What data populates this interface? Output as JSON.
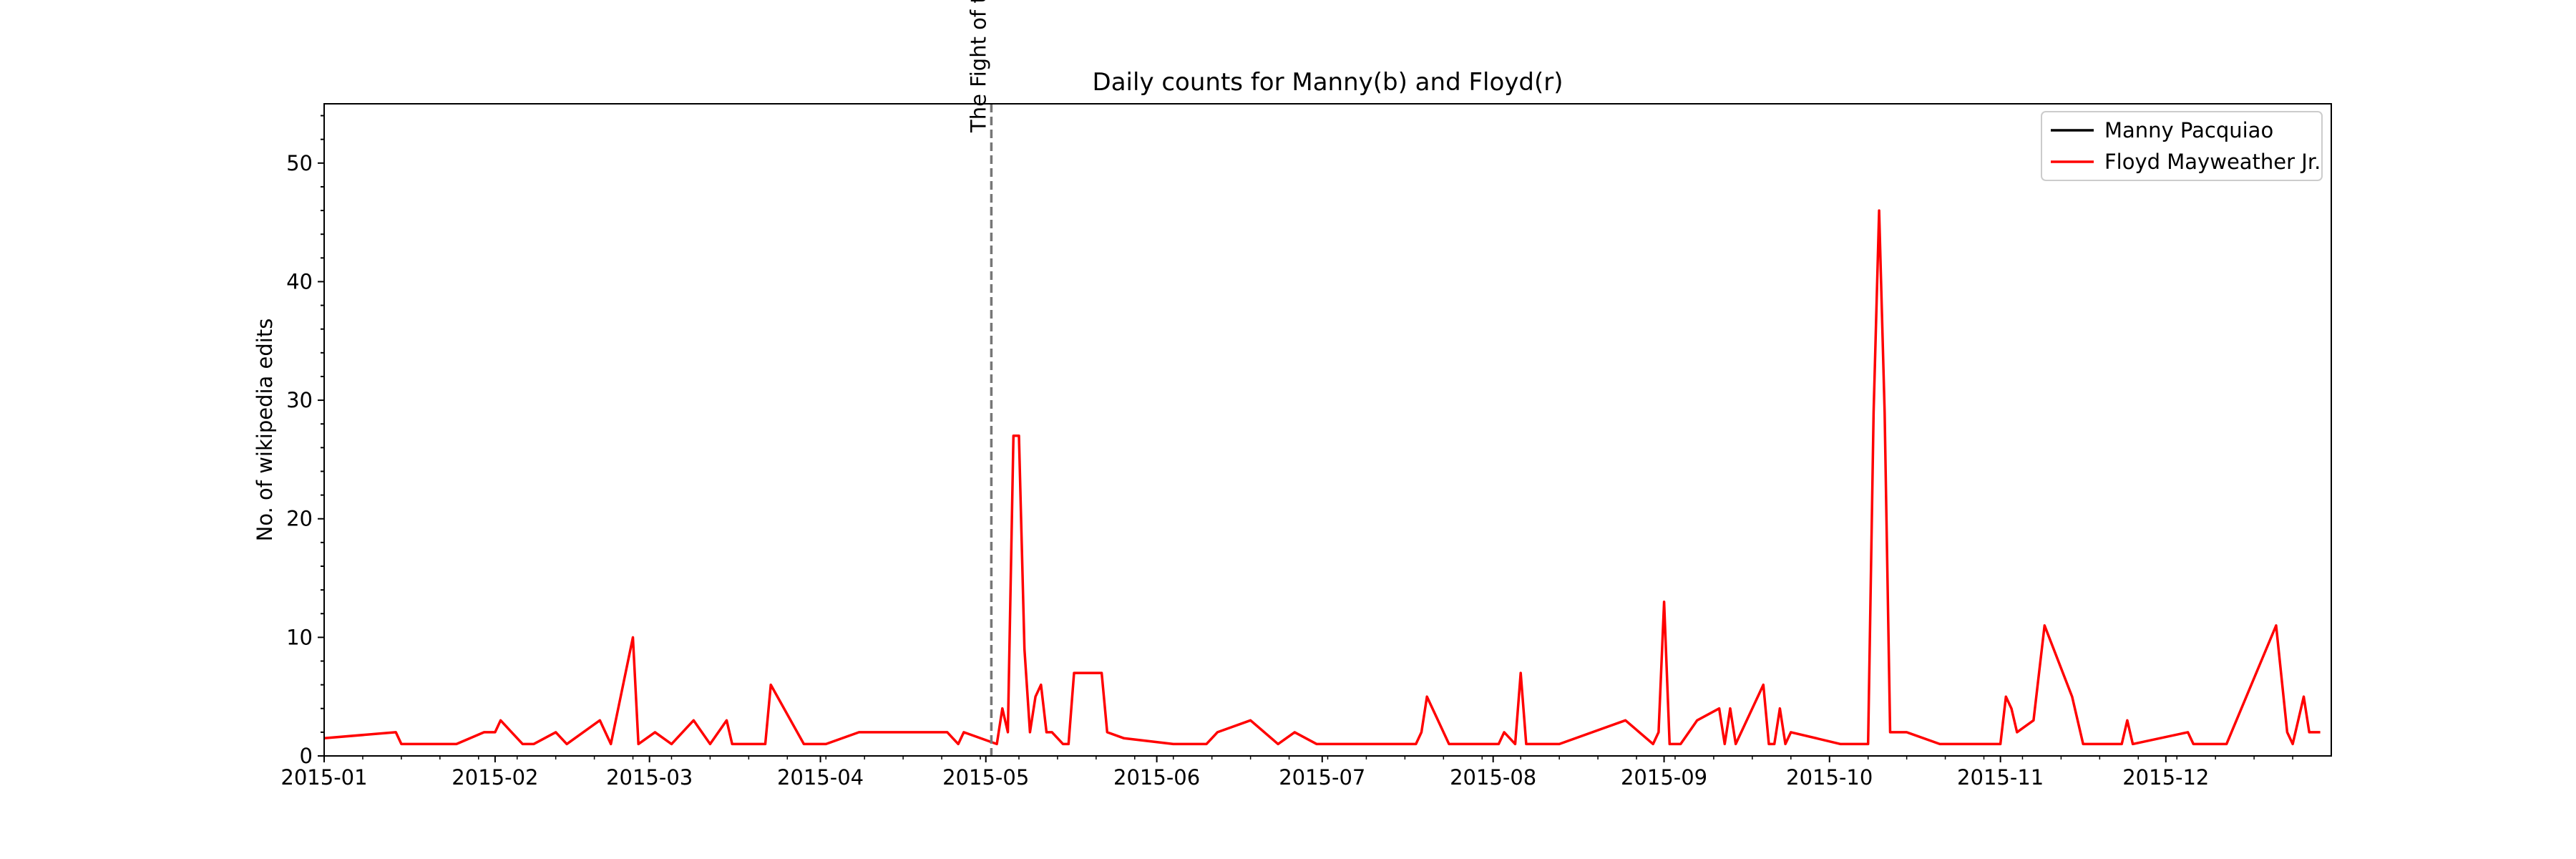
{
  "chart_data": {
    "type": "line",
    "title": "Daily counts for Manny(b) and Floyd(r)",
    "xlabel": "",
    "ylabel": "No. of wikipedia edits",
    "x_tick_labels": [
      "2015-01",
      "2015-02",
      "2015-03",
      "2015-04",
      "2015-05",
      "2015-06",
      "2015-07",
      "2015-08",
      "2015-09",
      "2015-10",
      "2015-11",
      "2015-12"
    ],
    "y_ticks": [
      0,
      10,
      20,
      30,
      40,
      50
    ],
    "xlim": [
      "2015-01-01",
      "2015-12-31"
    ],
    "ylim": [
      0,
      55
    ],
    "grid": false,
    "legend_position": "top-right",
    "annotation": {
      "label": "The Fight of t",
      "x": "2015-05-02",
      "style": "dashed",
      "color": "#777777"
    },
    "series": [
      {
        "name": "Manny Pacquiao",
        "color": "#000000",
        "points": []
      },
      {
        "name": "Floyd Mayweather Jr.",
        "color": "#ff0000",
        "points": [
          [
            "2015-01-01",
            1.5
          ],
          [
            "2015-01-14",
            2
          ],
          [
            "2015-01-15",
            1
          ],
          [
            "2015-01-25",
            1
          ],
          [
            "2015-01-30",
            2
          ],
          [
            "2015-01-31",
            2
          ],
          [
            "2015-02-01",
            2
          ],
          [
            "2015-02-02",
            3
          ],
          [
            "2015-02-04",
            2
          ],
          [
            "2015-02-06",
            1
          ],
          [
            "2015-02-08",
            1
          ],
          [
            "2015-02-12",
            2
          ],
          [
            "2015-02-14",
            1
          ],
          [
            "2015-02-20",
            3
          ],
          [
            "2015-02-22",
            1
          ],
          [
            "2015-02-26",
            10
          ],
          [
            "2015-02-27",
            1
          ],
          [
            "2015-03-02",
            2
          ],
          [
            "2015-03-05",
            1
          ],
          [
            "2015-03-09",
            3
          ],
          [
            "2015-03-12",
            1
          ],
          [
            "2015-03-15",
            3
          ],
          [
            "2015-03-16",
            1
          ],
          [
            "2015-03-22",
            1
          ],
          [
            "2015-03-23",
            6
          ],
          [
            "2015-03-29",
            1
          ],
          [
            "2015-04-02",
            1
          ],
          [
            "2015-04-08",
            2
          ],
          [
            "2015-04-23",
            2
          ],
          [
            "2015-04-24",
            2
          ],
          [
            "2015-04-26",
            1
          ],
          [
            "2015-04-27",
            2
          ],
          [
            "2015-05-03",
            1
          ],
          [
            "2015-05-04",
            4
          ],
          [
            "2015-05-05",
            2
          ],
          [
            "2015-05-06",
            27
          ],
          [
            "2015-05-07",
            27
          ],
          [
            "2015-05-08",
            9
          ],
          [
            "2015-05-09",
            2
          ],
          [
            "2015-05-10",
            5
          ],
          [
            "2015-05-11",
            6
          ],
          [
            "2015-05-12",
            2
          ],
          [
            "2015-05-13",
            2
          ],
          [
            "2015-05-15",
            1
          ],
          [
            "2015-05-16",
            1
          ],
          [
            "2015-05-17",
            7
          ],
          [
            "2015-05-22",
            7
          ],
          [
            "2015-05-23",
            2
          ],
          [
            "2015-05-26",
            1.5
          ],
          [
            "2015-06-04",
            1
          ],
          [
            "2015-06-09",
            1
          ],
          [
            "2015-06-10",
            1
          ],
          [
            "2015-06-12",
            2
          ],
          [
            "2015-06-18",
            3
          ],
          [
            "2015-06-23",
            1
          ],
          [
            "2015-06-26",
            2
          ],
          [
            "2015-06-30",
            1
          ],
          [
            "2015-07-18",
            1
          ],
          [
            "2015-07-19",
            2
          ],
          [
            "2015-07-20",
            5
          ],
          [
            "2015-07-22",
            3
          ],
          [
            "2015-07-24",
            1
          ],
          [
            "2015-08-02",
            1
          ],
          [
            "2015-08-03",
            2
          ],
          [
            "2015-08-05",
            1
          ],
          [
            "2015-08-06",
            7
          ],
          [
            "2015-08-07",
            1
          ],
          [
            "2015-08-13",
            1
          ],
          [
            "2015-08-25",
            3
          ],
          [
            "2015-08-30",
            1
          ],
          [
            "2015-08-31",
            2
          ],
          [
            "2015-09-01",
            13
          ],
          [
            "2015-09-02",
            1
          ],
          [
            "2015-09-04",
            1
          ],
          [
            "2015-09-07",
            3
          ],
          [
            "2015-09-11",
            4
          ],
          [
            "2015-09-12",
            1
          ],
          [
            "2015-09-13",
            4
          ],
          [
            "2015-09-14",
            1
          ],
          [
            "2015-09-19",
            6
          ],
          [
            "2015-09-20",
            1
          ],
          [
            "2015-09-21",
            1
          ],
          [
            "2015-09-22",
            4
          ],
          [
            "2015-09-23",
            1
          ],
          [
            "2015-09-24",
            2
          ],
          [
            "2015-10-03",
            1
          ],
          [
            "2015-10-08",
            1
          ],
          [
            "2015-10-09",
            29
          ],
          [
            "2015-10-10",
            46
          ],
          [
            "2015-10-11",
            29
          ],
          [
            "2015-10-12",
            2
          ],
          [
            "2015-10-15",
            2
          ],
          [
            "2015-10-21",
            1
          ],
          [
            "2015-11-01",
            1
          ],
          [
            "2015-11-02",
            5
          ],
          [
            "2015-11-03",
            4
          ],
          [
            "2015-11-04",
            2
          ],
          [
            "2015-11-07",
            3
          ],
          [
            "2015-11-09",
            11
          ],
          [
            "2015-11-14",
            5
          ],
          [
            "2015-11-16",
            1
          ],
          [
            "2015-11-19",
            1
          ],
          [
            "2015-11-23",
            1
          ],
          [
            "2015-11-24",
            3
          ],
          [
            "2015-11-25",
            1
          ],
          [
            "2015-12-05",
            2
          ],
          [
            "2015-12-06",
            1
          ],
          [
            "2015-12-07",
            1
          ],
          [
            "2015-12-08",
            1
          ],
          [
            "2015-12-12",
            1
          ],
          [
            "2015-12-21",
            11
          ],
          [
            "2015-12-23",
            2
          ],
          [
            "2015-12-24",
            1
          ],
          [
            "2015-12-26",
            5
          ],
          [
            "2015-12-27",
            2
          ],
          [
            "2015-12-29",
            2
          ]
        ]
      }
    ]
  }
}
